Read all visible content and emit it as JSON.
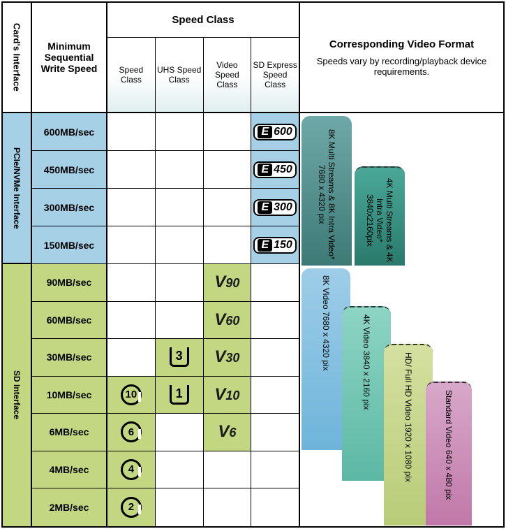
{
  "headers": {
    "interface": "Card's Interface",
    "min_speed": "Minimum Sequential Write Speed",
    "speed_class": "Speed Class",
    "sub_classes": [
      "Speed Class",
      "UHS Speed Class",
      "Video Speed Class",
      "SD Express Speed Class"
    ],
    "video_format_title": "Corresponding Video Format",
    "video_format_sub": "Speeds vary by recording/playback device requirements."
  },
  "interfaces": {
    "pcie": "PCIe/NVMe Interface",
    "sd": "SD Interface"
  },
  "pcie_rows": [
    {
      "speed": "600MB/sec",
      "express": "600"
    },
    {
      "speed": "450MB/sec",
      "express": "450"
    },
    {
      "speed": "300MB/sec",
      "express": "300"
    },
    {
      "speed": "150MB/sec",
      "express": "150"
    }
  ],
  "sd_rows": [
    {
      "speed": "90MB/sec",
      "c": "",
      "uhs": "",
      "v": "90"
    },
    {
      "speed": "60MB/sec",
      "c": "",
      "uhs": "",
      "v": "60"
    },
    {
      "speed": "30MB/sec",
      "c": "",
      "uhs": "3",
      "v": "30"
    },
    {
      "speed": "10MB/sec",
      "c": "10",
      "uhs": "1",
      "v": "10"
    },
    {
      "speed": "6MB/sec",
      "c": "6",
      "uhs": "",
      "v": "6"
    },
    {
      "speed": "4MB/sec",
      "c": "4",
      "uhs": "",
      "v": ""
    },
    {
      "speed": "2MB/sec",
      "c": "2",
      "uhs": "",
      "v": ""
    }
  ],
  "vf": {
    "b8km": "8K Multi Streams & 8K Intra Video* 7680 x 4320 pix",
    "b4km": "4K Multi Streams  & 4K Intra Video* 3840x2160pix",
    "b8kv": "8K Video 7680 x 4320 pix",
    "b4kv": "4K Video 3840 x 2160 pix",
    "bhd": "HD/ Full HD Video 1920 x 1080 pix",
    "bstd": "Standard Video 640 x 480 pix"
  },
  "colors": {
    "bg_blue": "#a6d0e6",
    "bg_green": "#c3d682"
  }
}
